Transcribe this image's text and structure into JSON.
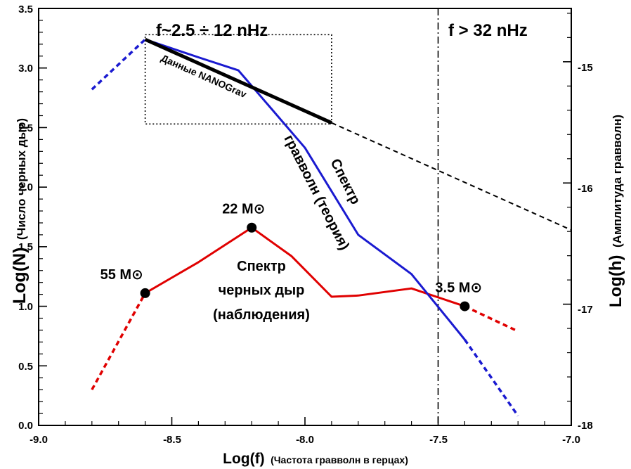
{
  "chart_data": {
    "type": "line",
    "x_axis": {
      "label_main": "Log(f)",
      "label_sub": "(Частота гравволн в герцах)",
      "range": [
        -9.0,
        -7.0
      ],
      "ticks": [
        "-9.0",
        "-8.5",
        "-8.0",
        "-7.5",
        "-7.0"
      ]
    },
    "y_axis_left": {
      "label_main": "Log(N)",
      "label_sub": "(Число черных дыр)",
      "range": [
        0.0,
        3.5
      ],
      "ticks": [
        "0.0",
        "0.5",
        "1.0",
        "1.5",
        "2.0",
        "2.5",
        "3.0",
        "3.5"
      ]
    },
    "y_axis_right": {
      "label_main": "Log(h)",
      "label_sub": "(Амплитуда гравволн)",
      "range": [
        -18,
        -14.56
      ],
      "ticks": [
        "-15",
        "-16",
        "-17",
        "-18"
      ]
    },
    "series": [
      {
        "id": "bh_spectrum",
        "color": "#e00000",
        "axis": "left",
        "solid": [
          [
            -8.6,
            1.11
          ],
          [
            -8.4,
            1.37
          ],
          [
            -8.2,
            1.66
          ],
          [
            -8.05,
            1.42
          ],
          [
            -7.9,
            1.08
          ],
          [
            -7.8,
            1.09
          ],
          [
            -7.6,
            1.15
          ],
          [
            -7.4,
            1.0
          ]
        ],
        "dashed_start": [
          [
            -8.8,
            0.3
          ],
          [
            -8.6,
            1.11
          ]
        ],
        "dashed_end": [
          [
            -7.4,
            1.0
          ],
          [
            -7.2,
            0.79
          ]
        ]
      },
      {
        "id": "gw_spectrum_theory",
        "color": "#1a1ad0",
        "axis": "left",
        "solid": [
          [
            -8.6,
            3.24
          ],
          [
            -8.4,
            3.09
          ],
          [
            -8.25,
            2.98
          ],
          [
            -8.0,
            2.33
          ],
          [
            -7.8,
            1.6
          ],
          [
            -7.6,
            1.27
          ],
          [
            -7.4,
            0.72
          ]
        ],
        "dashed_start": [
          [
            -8.8,
            2.82
          ],
          [
            -8.6,
            3.24
          ]
        ],
        "dashed_end": [
          [
            -7.4,
            0.72
          ],
          [
            -7.2,
            0.08
          ]
        ]
      },
      {
        "id": "nanograv",
        "color": "#000000",
        "axis": "left",
        "solid": [
          [
            -8.6,
            3.24
          ],
          [
            -7.9,
            2.54
          ]
        ],
        "dashed_end": [
          [
            -7.9,
            2.54
          ],
          [
            -7.0,
            1.64
          ]
        ]
      }
    ],
    "markers": [
      {
        "x": -8.6,
        "y": 1.11,
        "label": "55 M⊙"
      },
      {
        "x": -8.2,
        "y": 1.66,
        "label": "22 M⊙"
      },
      {
        "x": -7.4,
        "y": 1.0,
        "label": "3.5 M⊙"
      }
    ],
    "annotations": {
      "nanograv_label": "Данные NANOGrav",
      "gw_label_line1": "Спектр",
      "gw_label_line2": "гравволн (теория)",
      "bh_label_line1": "Спектр",
      "bh_label_line2": "черных дыр",
      "bh_label_line3": "(наблюдения)",
      "band_label": "f~2.5 ÷ 12 nHz",
      "high_label": "f > 32 nHz"
    },
    "box": {
      "x": [
        -8.6,
        -7.9
      ],
      "y": [
        2.53,
        3.28
      ]
    },
    "vertical_line_x": -7.5,
    "grid": false
  }
}
